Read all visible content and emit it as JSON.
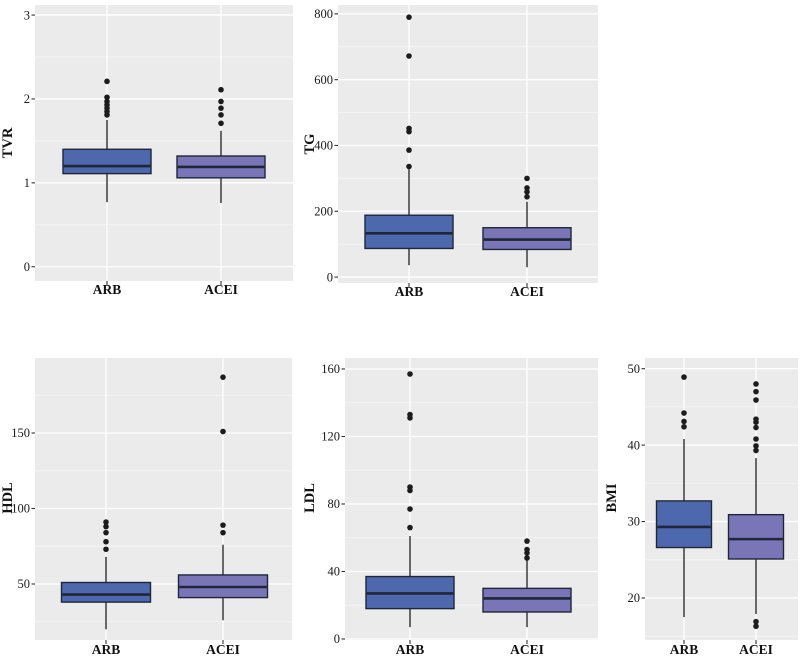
{
  "figure": {
    "background": "#ffffff"
  },
  "style": {
    "panel_background": "#ebebeb",
    "grid_major": "#ffffff",
    "grid_minor": "#f5f5f5",
    "box_border": "#20263a",
    "median_color": "#20263a",
    "whisker_color": "#2e2e2e",
    "outlier_color": "#1c1c1c",
    "tick_mark_color": "#333333",
    "text_color": "#1a1a1a",
    "arb_fill": "#4e68ae",
    "acei_fill": "#7a75b7"
  },
  "chart_data": [
    {
      "type": "box",
      "ylabel": "TVR",
      "categories": [
        "ARB",
        "ACEI"
      ],
      "ylim": [
        -0.17,
        3.12
      ],
      "yticks": [
        0,
        1,
        2,
        3
      ],
      "minor_step": 0.5,
      "grid": true,
      "series": [
        {
          "name": "ARB",
          "fill": "#4e68ae",
          "whisker_low": 0.77,
          "q1": 1.11,
          "median": 1.2,
          "q3": 1.4,
          "whisker_high": 1.75,
          "outliers": [
            1.81,
            1.85,
            1.89,
            1.93,
            1.97,
            2.02,
            2.21
          ]
        },
        {
          "name": "ACEI",
          "fill": "#7a75b7",
          "whisker_low": 0.76,
          "q1": 1.06,
          "median": 1.19,
          "q3": 1.32,
          "whisker_high": 1.62,
          "outliers": [
            1.71,
            1.81,
            1.89,
            1.97,
            2.11
          ]
        }
      ]
    },
    {
      "type": "box",
      "ylabel": "TG",
      "categories": [
        "ARB",
        "ACEI"
      ],
      "ylim": [
        -18,
        827
      ],
      "yticks": [
        0,
        200,
        400,
        600,
        800
      ],
      "minor_step": 100,
      "grid": true,
      "series": [
        {
          "name": "ARB",
          "fill": "#4e68ae",
          "whisker_low": 36,
          "q1": 87,
          "median": 133,
          "q3": 188,
          "whisker_high": 328,
          "outliers": [
            336,
            386,
            442,
            452,
            672,
            790
          ]
        },
        {
          "name": "ACEI",
          "fill": "#7a75b7",
          "whisker_low": 30,
          "q1": 84,
          "median": 114,
          "q3": 150,
          "whisker_high": 229,
          "outliers": [
            244,
            259,
            271,
            300
          ]
        }
      ]
    },
    {
      "type": "box",
      "ylabel": "HDL",
      "categories": [
        "ARB",
        "ACEI"
      ],
      "ylim": [
        12.9,
        199.7
      ],
      "yticks": [
        50,
        100,
        150
      ],
      "minor_step": 25,
      "grid": true,
      "series": [
        {
          "name": "ARB",
          "fill": "#4e68ae",
          "whisker_low": 20,
          "q1": 38,
          "median": 43,
          "q3": 51,
          "whisker_high": 68,
          "outliers": [
            73,
            78,
            84,
            88,
            91
          ]
        },
        {
          "name": "ACEI",
          "fill": "#7a75b7",
          "whisker_low": 26,
          "q1": 41,
          "median": 48,
          "q3": 56,
          "whisker_high": 76,
          "outliers": [
            84,
            89,
            151,
            187
          ]
        }
      ]
    },
    {
      "type": "box",
      "ylabel": "LDL",
      "categories": [
        "ARB",
        "ACEI"
      ],
      "ylim": [
        -0.6,
        166.5
      ],
      "yticks": [
        0,
        40,
        80,
        120,
        160
      ],
      "minor_step": 20,
      "grid": true,
      "series": [
        {
          "name": "ARB",
          "fill": "#4e68ae",
          "whisker_low": 7,
          "q1": 18,
          "median": 27,
          "q3": 37,
          "whisker_high": 61,
          "outliers": [
            66,
            77,
            88,
            90,
            131,
            133,
            157
          ]
        },
        {
          "name": "ACEI",
          "fill": "#7a75b7",
          "whisker_low": 7,
          "q1": 16,
          "median": 24,
          "q3": 30,
          "whisker_high": 47,
          "outliers": [
            48,
            51,
            53,
            58
          ]
        }
      ]
    },
    {
      "type": "box",
      "ylabel": "BMI",
      "categories": [
        "ARB",
        "ACEI"
      ],
      "ylim": [
        14.5,
        51.4
      ],
      "yticks": [
        20,
        30,
        40,
        50
      ],
      "minor_step": 5,
      "grid": true,
      "series": [
        {
          "name": "ARB",
          "fill": "#4e68ae",
          "whisker_low": 17.5,
          "q1": 26.6,
          "median": 29.3,
          "q3": 32.7,
          "whisker_high": 40.8,
          "outliers": [
            42.4,
            43.1,
            44.2,
            48.9
          ]
        },
        {
          "name": "ACEI",
          "fill": "#7a75b7",
          "whisker_low": 17.9,
          "q1": 25.1,
          "median": 27.7,
          "q3": 30.9,
          "whisker_high": 38.3,
          "outliers": [
            16.3,
            16.9,
            39.3,
            39.9,
            40.8,
            42.3,
            43.0,
            43.4,
            45.9,
            47.0,
            48.0
          ]
        }
      ]
    }
  ]
}
